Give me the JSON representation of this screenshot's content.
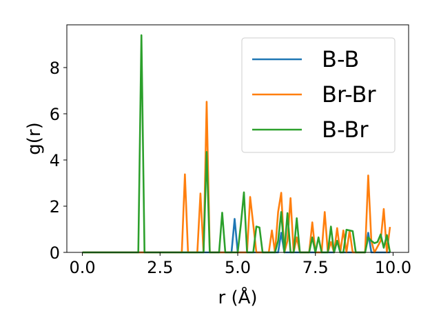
{
  "chart_data": {
    "type": "line",
    "title": "",
    "xlabel": "r (Å)",
    "ylabel": "g(r)",
    "xlim": [
      -0.5,
      10.5
    ],
    "ylim": [
      0,
      9.85
    ],
    "xticks": [
      0.0,
      2.5,
      5.0,
      7.5,
      10.0
    ],
    "xtick_labels": [
      "0.0",
      "2.5",
      "5.0",
      "7.5",
      "10.0"
    ],
    "yticks": [
      0,
      2,
      4,
      6,
      8
    ],
    "ytick_labels": [
      "0",
      "2",
      "4",
      "6",
      "8"
    ],
    "grid": false,
    "legend": {
      "placement": "top-right"
    },
    "series": [
      {
        "name": "B-B",
        "color": "#1f77b4",
        "points": [
          [
            0.0,
            0
          ],
          [
            4.8,
            0
          ],
          [
            4.9,
            1.45
          ],
          [
            5.0,
            0
          ],
          [
            6.3,
            0
          ],
          [
            6.4,
            0.85
          ],
          [
            6.5,
            0
          ],
          [
            8.1,
            0
          ],
          [
            8.2,
            0.5
          ],
          [
            8.3,
            0
          ],
          [
            9.1,
            0
          ],
          [
            9.2,
            0.85
          ],
          [
            9.3,
            0
          ],
          [
            9.9,
            0
          ]
        ]
      },
      {
        "name": "Br-Br",
        "color": "#ff7f0e",
        "points": [
          [
            0.0,
            0
          ],
          [
            3.2,
            0
          ],
          [
            3.3,
            3.38
          ],
          [
            3.4,
            0
          ],
          [
            3.7,
            0
          ],
          [
            3.8,
            2.55
          ],
          [
            3.9,
            0
          ],
          [
            4.0,
            6.52
          ],
          [
            4.1,
            0
          ],
          [
            5.3,
            0
          ],
          [
            5.4,
            2.4
          ],
          [
            5.5,
            1.2
          ],
          [
            5.6,
            0
          ],
          [
            6.0,
            0
          ],
          [
            6.1,
            0.95
          ],
          [
            6.2,
            0
          ],
          [
            6.3,
            1.75
          ],
          [
            6.4,
            2.58
          ],
          [
            6.5,
            0
          ],
          [
            6.6,
            0.5
          ],
          [
            6.7,
            2.35
          ],
          [
            6.8,
            0
          ],
          [
            6.9,
            0.65
          ],
          [
            7.0,
            0
          ],
          [
            7.3,
            0
          ],
          [
            7.4,
            1.3
          ],
          [
            7.5,
            0
          ],
          [
            7.7,
            0
          ],
          [
            7.8,
            1.75
          ],
          [
            7.9,
            0
          ],
          [
            8.0,
            0.45
          ],
          [
            8.1,
            0
          ],
          [
            8.2,
            1.05
          ],
          [
            8.3,
            0
          ],
          [
            8.4,
            0.95
          ],
          [
            8.5,
            0
          ],
          [
            8.6,
            0.95
          ],
          [
            8.7,
            0
          ],
          [
            9.1,
            0
          ],
          [
            9.2,
            3.33
          ],
          [
            9.3,
            0.5
          ],
          [
            9.4,
            0
          ],
          [
            9.6,
            0.5
          ],
          [
            9.7,
            1.88
          ],
          [
            9.8,
            0
          ],
          [
            9.9,
            1.1
          ]
        ]
      },
      {
        "name": "B-Br",
        "color": "#2ca02c",
        "points": [
          [
            0.0,
            0
          ],
          [
            1.8,
            0
          ],
          [
            1.9,
            9.4
          ],
          [
            2.0,
            0
          ],
          [
            3.9,
            0
          ],
          [
            4.0,
            4.35
          ],
          [
            4.1,
            0
          ],
          [
            4.4,
            0
          ],
          [
            4.5,
            1.72
          ],
          [
            4.6,
            0
          ],
          [
            5.0,
            0
          ],
          [
            5.1,
            1.2
          ],
          [
            5.2,
            2.6
          ],
          [
            5.3,
            0
          ],
          [
            5.5,
            0
          ],
          [
            5.6,
            1.12
          ],
          [
            5.7,
            1.08
          ],
          [
            5.8,
            0
          ],
          [
            6.2,
            0
          ],
          [
            6.3,
            0.5
          ],
          [
            6.4,
            1.75
          ],
          [
            6.5,
            0
          ],
          [
            6.6,
            1.7
          ],
          [
            6.7,
            0
          ],
          [
            6.8,
            0
          ],
          [
            6.9,
            1.48
          ],
          [
            7.0,
            0
          ],
          [
            7.3,
            0
          ],
          [
            7.4,
            0.65
          ],
          [
            7.5,
            0
          ],
          [
            7.6,
            0.65
          ],
          [
            7.7,
            0
          ],
          [
            7.9,
            0
          ],
          [
            8.0,
            1.12
          ],
          [
            8.1,
            0
          ],
          [
            8.2,
            0.5
          ],
          [
            8.3,
            0
          ],
          [
            8.4,
            0
          ],
          [
            8.5,
            0.98
          ],
          [
            8.6,
            0.95
          ],
          [
            8.7,
            0.92
          ],
          [
            8.8,
            0
          ],
          [
            9.1,
            0
          ],
          [
            9.2,
            0.65
          ],
          [
            9.3,
            0.5
          ],
          [
            9.4,
            0.4
          ],
          [
            9.5,
            0.45
          ],
          [
            9.6,
            0.78
          ],
          [
            9.7,
            0.2
          ],
          [
            9.8,
            0.75
          ],
          [
            9.9,
            0
          ]
        ]
      }
    ]
  }
}
